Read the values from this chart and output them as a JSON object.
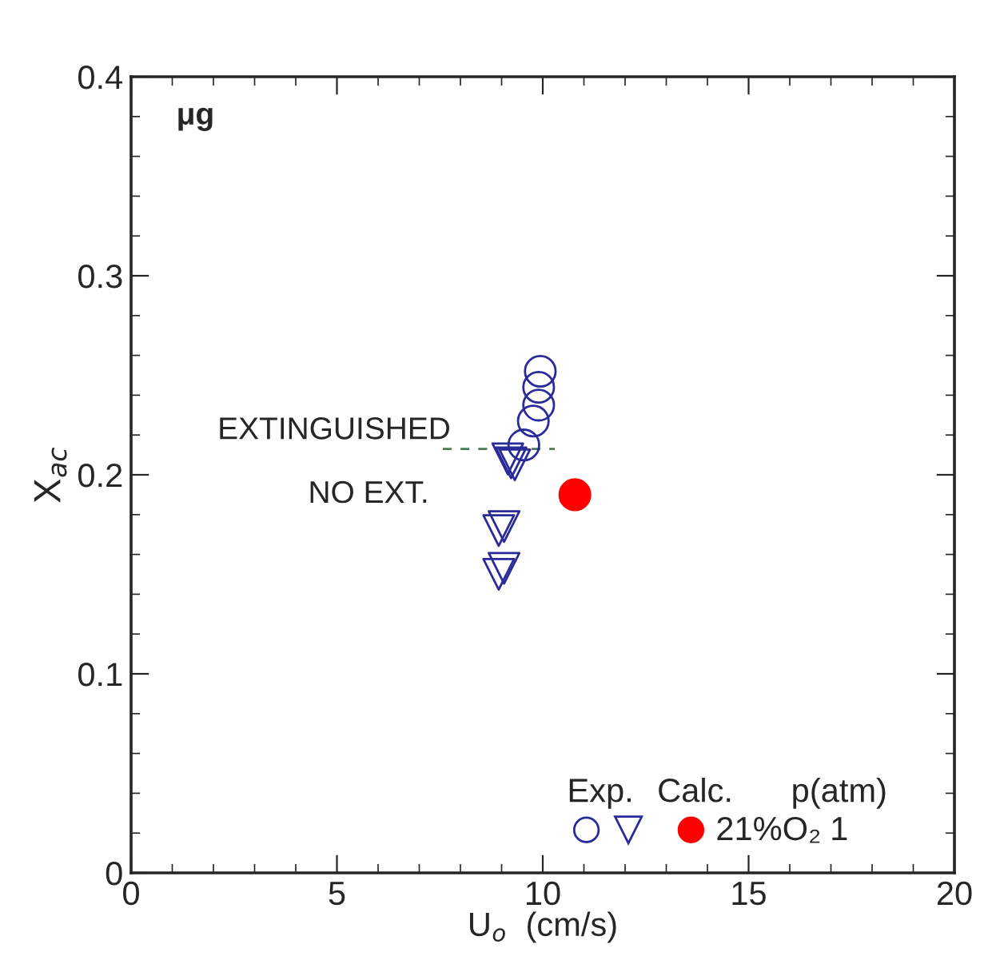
{
  "chart_data": {
    "type": "scatter",
    "xlabel": "U$_{o}$  (cm/s)",
    "ylabel": "X$_{ac}$",
    "xlim": [
      0,
      20
    ],
    "ylim": [
      0,
      0.4
    ],
    "xticks": [
      0,
      5,
      10,
      15,
      20
    ],
    "yticks": [
      0,
      0.1,
      0.2,
      0.3,
      0.4
    ],
    "grid": false,
    "series": [
      {
        "color": "#2a2a9a",
        "marker": "circle",
        "x": [
          9.94,
          9.9,
          9.9,
          9.77,
          9.54
        ],
        "values": [
          0.252,
          0.244,
          0.235,
          0.227,
          0.215
        ]
      },
      {
        "color": "#2a2a9a",
        "marker": "triangle",
        "x": [
          9.32,
          9.23,
          9.15,
          9.06,
          8.93,
          9.06,
          8.93
        ],
        "values": [
          0.205,
          0.206,
          0.208,
          0.174,
          0.172,
          0.153,
          0.15
        ]
      },
      {
        "color": "#ff0000",
        "marker": "circle",
        "x": [
          10.78
        ],
        "values": [
          0.19
        ]
      },
      {
        "type": "line",
        "color": "#4a7a5a",
        "line_style": "dashed",
        "x": [
          7.57,
          10.29
        ],
        "values": [
          0.213,
          0.213
        ]
      }
    ],
    "annotations": [
      "μg",
      "EXTINGUISHED",
      "NO EXT.",
      "Exp.",
      "Calc.",
      "p(atm)",
      "21%O₂",
      "1"
    ]
  }
}
